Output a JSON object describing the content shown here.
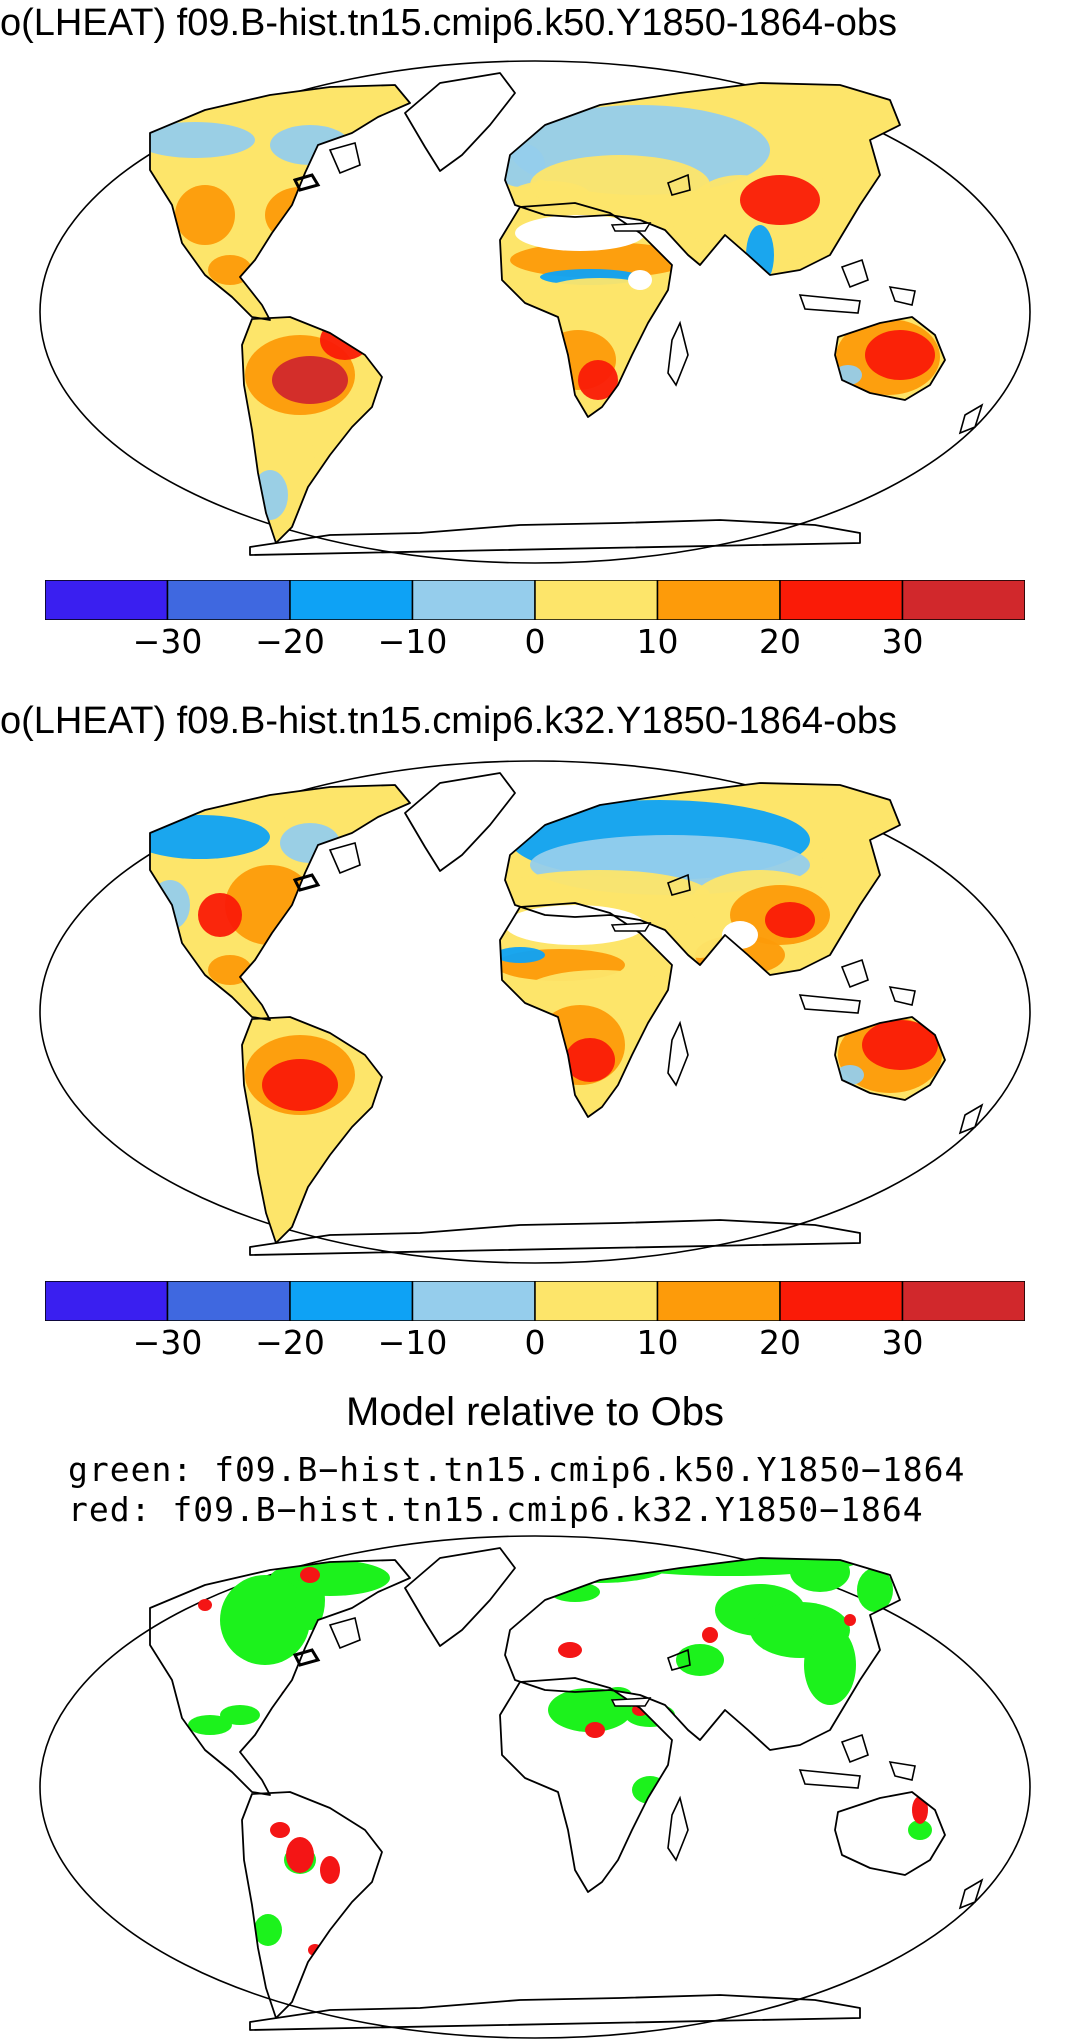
{
  "panels": [
    {
      "title": "o(LHEAT) f09.B-hist.tn15.cmip6.k50.Y1850-1864-obs",
      "variant": "k50"
    },
    {
      "title": "o(LHEAT) f09.B-hist.tn15.cmip6.k32.Y1850-1864-obs",
      "variant": "k32"
    }
  ],
  "colorbar": {
    "colors": [
      "#3a1ff0",
      "#3f68e0",
      "#0ea2f5",
      "#95cdec",
      "#fde56a",
      "#fd9b0a",
      "#fa1b07",
      "#d1282c"
    ],
    "tick_labels": [
      "−30",
      "−20",
      "−10",
      "0",
      "10",
      "20",
      "30"
    ]
  },
  "comparison": {
    "title": "Model relative to Obs",
    "green_label": "green: f09.B−hist.tn15.cmip6.k50.Y1850−1864",
    "red_label": "red: f09.B−hist.tn15.cmip6.k32.Y1850−1864",
    "green_color": "#1cf21c",
    "red_color": "#f41515"
  }
}
